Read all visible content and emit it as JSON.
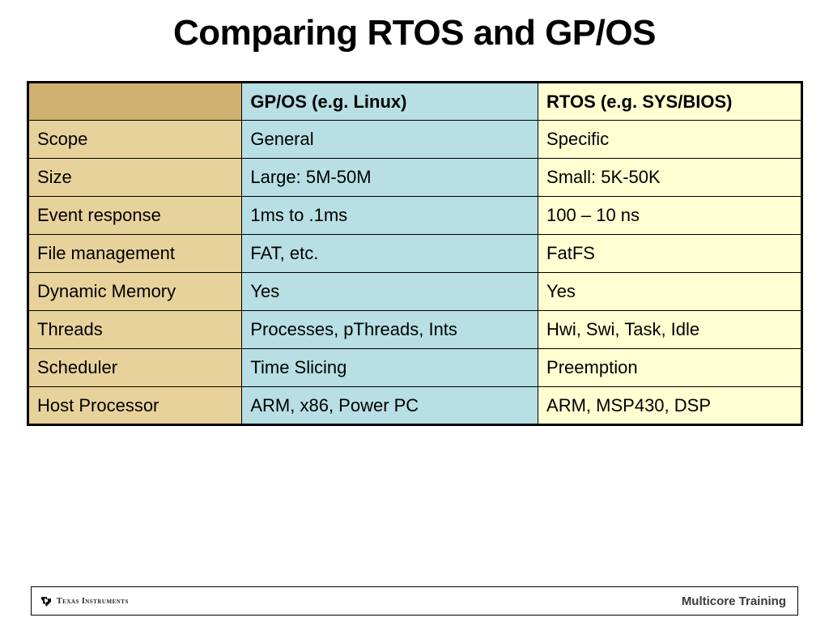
{
  "slide": {
    "title": "Comparing RTOS and GP/OS"
  },
  "table": {
    "headers": [
      "",
      "GP/OS (e.g. Linux)",
      "RTOS (e.g. SYS/BIOS)"
    ],
    "rows": [
      [
        "Scope",
        "General",
        "Specific"
      ],
      [
        "Size",
        "Large: 5M-50M",
        "Small: 5K-50K"
      ],
      [
        "Event response",
        "1ms to .1ms",
        "100 – 10 ns"
      ],
      [
        "File management",
        "FAT, etc.",
        "FatFS"
      ],
      [
        "Dynamic Memory",
        "Yes",
        "Yes"
      ],
      [
        "Threads",
        "Processes, pThreads, Ints",
        "Hwi, Swi, Task, Idle"
      ],
      [
        "Scheduler",
        "Time Slicing",
        "Preemption"
      ],
      [
        "Host Processor",
        "ARM, x86, Power PC",
        "ARM, MSP430, DSP"
      ]
    ]
  },
  "footer": {
    "logo_text": "Texas Instruments",
    "logo_icon": "ti-logo-icon",
    "right_text": "Multicore Training"
  },
  "colors": {
    "header_corner": "#cfb170",
    "row_label": "#e8d29c",
    "gpos_column": "#b7dfe4",
    "rtos_column": "#ffffd2"
  }
}
